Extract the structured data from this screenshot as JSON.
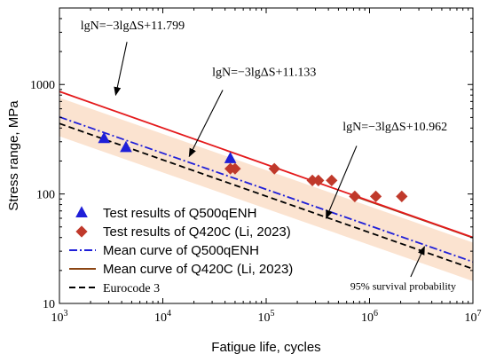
{
  "chart_data": {
    "type": "line",
    "xlabel": "Fatigue life, cycles",
    "ylabel": "Stress range, MPa",
    "x_scale": "log",
    "y_scale": "log",
    "xlim": [
      1000,
      10000000
    ],
    "ylim": [
      10,
      5000
    ],
    "x_ticks": [
      {
        "value": 1000,
        "base": "10",
        "exp": "3"
      },
      {
        "value": 10000,
        "base": "10",
        "exp": "4"
      },
      {
        "value": 100000,
        "base": "10",
        "exp": "5"
      },
      {
        "value": 1000000,
        "base": "10",
        "exp": "6"
      },
      {
        "value": 10000000,
        "base": "10",
        "exp": "7"
      }
    ],
    "y_ticks": [
      {
        "value": 10,
        "label": "10"
      },
      {
        "value": 100,
        "label": "100"
      },
      {
        "value": 1000,
        "label": "1000"
      }
    ],
    "grid": false,
    "legend_position": "bottom-left",
    "band": {
      "color": "#fbe3d0",
      "offset_factor": 1.5,
      "x_range": [
        1000,
        10000000
      ]
    },
    "series": [
      {
        "name": "Test results of Q500qENH",
        "kind": "scatter",
        "marker": "triangle",
        "color": "#1f1fd8",
        "points": [
          [
            2700,
            320
          ],
          [
            4400,
            265
          ],
          [
            45000,
            210
          ]
        ]
      },
      {
        "name": "Test results of Q420C (Li, 2023)",
        "kind": "scatter",
        "marker": "diamond",
        "color": "#c0392b",
        "points": [
          [
            45000,
            170
          ],
          [
            50000,
            170
          ],
          [
            120000,
            170
          ],
          [
            280000,
            133
          ],
          [
            320000,
            133
          ],
          [
            430000,
            133
          ],
          [
            720000,
            95
          ],
          [
            1150000,
            95
          ],
          [
            2050000,
            95
          ]
        ]
      },
      {
        "name": "Mean curve of Q500qENH",
        "kind": "line",
        "dash": "dashdot",
        "color": "#1f1fd8",
        "points": [
          [
            1000,
            505
          ],
          [
            10000000,
            24
          ]
        ]
      },
      {
        "name": "Mean curve of Q420C (Li, 2023)",
        "kind": "line",
        "dash": "solid",
        "color": "#8b4513",
        "points": [
          [
            700000,
            96
          ],
          [
            10000000,
            39.9
          ]
        ]
      },
      {
        "name": "Eurocode 3",
        "kind": "line",
        "dash": "dashed",
        "color": "#000000",
        "points": [
          [
            1000,
            440
          ],
          [
            10000000,
            20.7
          ]
        ]
      },
      {
        "name": "",
        "kind": "line",
        "dash": "solid",
        "color": "#e41a1c",
        "points": [
          [
            1000,
            863
          ],
          [
            10000000,
            40.1
          ]
        ]
      }
    ],
    "annotations": [
      {
        "text": "lgN=−3lgΔS+11.799",
        "label_at": [
          1600,
          3200
        ],
        "arrow_from": [
          4500,
          2450
        ],
        "arrow_to": [
          3500,
          800
        ]
      },
      {
        "text": "lgN=−3lgΔS+11.133",
        "label_at": [
          30000,
          1200
        ],
        "arrow_from": [
          38000,
          890
        ],
        "arrow_to": [
          18000,
          220
        ]
      },
      {
        "text": "lgN=−3lgΔS+10.962",
        "label_at": [
          550000,
          380
        ],
        "arrow_from": [
          750000,
          275
        ],
        "arrow_to": [
          380000,
          60
        ]
      },
      {
        "text": "95% survival probability",
        "label_at": [
          650000,
          13.3
        ],
        "arrow_from": [
          2500000,
          17.5
        ],
        "arrow_to": [
          3400000,
          33
        ]
      }
    ]
  }
}
